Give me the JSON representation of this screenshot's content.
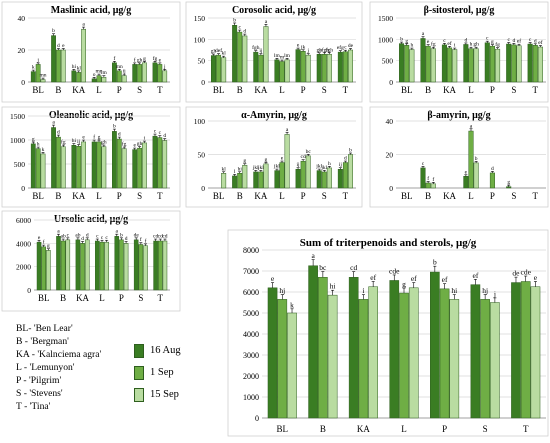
{
  "legend": {
    "abbreviations": [
      "BL- 'Ben Lear'",
      "B - 'Bergman'",
      "KA - 'Kalnciema agra'",
      "L - 'Lemunyon'",
      "P -  'Pilgrim'",
      "S - 'Stevens'",
      "T - 'Tina'"
    ],
    "series": [
      "16 Aug",
      "1 Sep",
      "15 Sep"
    ]
  },
  "colors": {
    "s0": "#3a7d23",
    "s1": "#6fae45",
    "s2": "#b9dca1",
    "edge": "#2e5e1e"
  },
  "chart_data": [
    {
      "type": "bar",
      "title": "Maslinic acid, μg/g",
      "categories": [
        "BL",
        "B",
        "KA",
        "L",
        "P",
        "S",
        "T"
      ],
      "ylim": [
        0,
        40
      ],
      "yticks": [
        0,
        20,
        40
      ],
      "yticklabels": [
        "0",
        "20",
        "40"
      ],
      "series": [
        {
          "name": "16 Aug",
          "values": [
            6.5,
            29,
            7,
            2,
            12,
            11,
            12
          ]
        },
        {
          "name": "1 Sep",
          "values": [
            11,
            20,
            6,
            4,
            7,
            11,
            11
          ]
        },
        {
          "name": "15 Sep",
          "values": [
            1.5,
            20,
            33,
            3,
            4,
            12,
            7
          ]
        }
      ],
      "labels": [
        [
          "k",
          "j",
          "mn"
        ],
        [
          "b",
          "d",
          "e"
        ],
        [
          "hi",
          "kl",
          "a"
        ],
        [
          "o",
          "mn",
          "lm"
        ],
        [
          "f",
          "mn",
          "ij"
        ],
        [
          "f",
          "gh",
          "g"
        ],
        [
          "fg",
          "e",
          "j"
        ]
      ]
    },
    {
      "type": "bar",
      "title": "Corosolic acid, μg/g",
      "categories": [
        "BL",
        "B",
        "KA",
        "L",
        "P",
        "S",
        "T"
      ],
      "ylim": [
        0,
        150
      ],
      "yticks": [
        0,
        50,
        100,
        150
      ],
      "yticklabels": [
        "0",
        "50",
        "100",
        "150"
      ],
      "series": [
        {
          "name": "16 Aug",
          "values": [
            62,
            133,
            70,
            52,
            76,
            65,
            70
          ]
        },
        {
          "name": "1 Sep",
          "values": [
            63,
            117,
            63,
            48,
            72,
            65,
            71
          ]
        },
        {
          "name": "15 Sep",
          "values": [
            57,
            108,
            130,
            52,
            63,
            65,
            75
          ]
        }
      ],
      "labels": [
        [
          "gh",
          "def",
          "kl"
        ],
        [
          "b",
          "c",
          "d"
        ],
        [
          "fgh",
          "ij",
          "a"
        ],
        [
          "lm",
          "m",
          "lm"
        ],
        [
          "e",
          "jk",
          "j"
        ],
        [
          "gh",
          "efgh",
          "fgh"
        ],
        [
          "efg",
          "c",
          "de"
        ]
      ]
    },
    {
      "type": "bar",
      "title": "β-sitosterol, μg/g",
      "categories": [
        "BL",
        "B",
        "KA",
        "L",
        "P",
        "S",
        "T"
      ],
      "ylim": [
        0,
        1500
      ],
      "yticks": [
        0,
        500,
        1000,
        1500
      ],
      "yticklabels": [
        "0",
        "500",
        "1000",
        "1500"
      ],
      "series": [
        {
          "name": "16 Aug",
          "values": [
            900,
            1020,
            870,
            880,
            920,
            890,
            890
          ]
        },
        {
          "name": "1 Sep",
          "values": [
            860,
            840,
            800,
            780,
            840,
            870,
            860
          ]
        },
        {
          "name": "15 Sep",
          "values": [
            760,
            780,
            760,
            780,
            770,
            850,
            820
          ]
        }
      ],
      "labels": [
        [
          "b",
          "g",
          "h"
        ],
        [
          "a",
          "e",
          "fg"
        ],
        [
          "c",
          "ef",
          "i"
        ],
        [
          "d",
          "h",
          "gh"
        ],
        [
          "c",
          "g",
          "fg"
        ],
        [
          "c",
          "d",
          "ef"
        ],
        [
          "c",
          "d",
          "ef"
        ]
      ]
    },
    {
      "type": "bar",
      "title": "Oleanolic acid, μg/g",
      "categories": [
        "BL",
        "B",
        "KA",
        "L",
        "P",
        "S",
        "T"
      ],
      "ylim": [
        0,
        1500
      ],
      "yticks": [
        0,
        500,
        1000,
        1500
      ],
      "yticklabels": [
        "0",
        "500",
        "1000",
        "1500"
      ],
      "series": [
        {
          "name": "16 Aug",
          "values": [
            920,
            1260,
            890,
            960,
            1180,
            800,
            1080
          ]
        },
        {
          "name": "1 Sep",
          "values": [
            820,
            1060,
            870,
            960,
            1020,
            830,
            1050
          ]
        },
        {
          "name": "15 Sep",
          "values": [
            710,
            860,
            960,
            860,
            820,
            940,
            990
          ]
        }
      ],
      "labels": [
        [
          "g",
          "h",
          "k"
        ],
        [
          "a",
          "d",
          "fg"
        ],
        [
          "hi",
          "ij",
          "e"
        ],
        [
          "f",
          "g",
          "gh"
        ],
        [
          "b",
          "d",
          "fg"
        ],
        [
          "e",
          "gh",
          "i"
        ],
        [
          "c",
          "c",
          "d"
        ]
      ]
    },
    {
      "type": "bar",
      "title": "α-Amyrin, μg/g",
      "categories": [
        "BL",
        "B",
        "KA",
        "L",
        "P",
        "S",
        "T"
      ],
      "ylim": [
        0,
        100
      ],
      "yticks": [
        0,
        50,
        100
      ],
      "yticklabels": [
        "0",
        "50",
        "100"
      ],
      "series": [
        {
          "name": "16 Aug",
          "values": [
            0,
            18,
            24,
            26,
            28,
            26,
            28
          ]
        },
        {
          "name": "1 Sep",
          "values": [
            0,
            22,
            24,
            38,
            40,
            24,
            38
          ]
        },
        {
          "name": "15 Sep",
          "values": [
            22,
            34,
            36,
            80,
            48,
            30,
            50
          ]
        }
      ],
      "labels": [
        [
          "",
          "",
          "kl"
        ],
        [
          "l",
          "hi",
          "g"
        ],
        [
          "jkl",
          "jkl",
          "g"
        ],
        [
          "jkl",
          "e",
          "a"
        ],
        [
          "ij",
          "cd",
          "bc"
        ],
        [
          "jkl",
          "jkl",
          "h"
        ],
        [
          "ij",
          "d",
          "b"
        ]
      ]
    },
    {
      "type": "bar",
      "title": "β-amyrin, μg/g",
      "categories": [
        "BL",
        "B",
        "KA",
        "L",
        "P",
        "S",
        "T"
      ],
      "ylim": [
        0,
        40
      ],
      "yticks": [
        0,
        20,
        40
      ],
      "yticklabels": [
        "0",
        "20",
        "40"
      ],
      "series": [
        {
          "name": "16 Aug",
          "values": [
            0,
            12,
            0,
            7,
            0,
            0.8,
            0
          ]
        },
        {
          "name": "1 Sep",
          "values": [
            0,
            3,
            0,
            34,
            9,
            0,
            0
          ]
        },
        {
          "name": "15 Sep",
          "values": [
            0,
            2.5,
            0,
            15,
            0,
            0,
            0
          ]
        }
      ],
      "labels": [
        [
          "",
          "",
          ""
        ],
        [
          "c",
          "f",
          "f"
        ],
        [
          "",
          "",
          ""
        ],
        [
          "e",
          "a",
          "b"
        ],
        [
          "",
          "d",
          ""
        ],
        [
          "g",
          "",
          ""
        ],
        [
          "",
          "",
          ""
        ]
      ]
    },
    {
      "type": "bar",
      "title": "Ursolic acid, μg/g",
      "categories": [
        "BL",
        "B",
        "KA",
        "L",
        "P",
        "S",
        "T"
      ],
      "ylim": [
        0,
        6000
      ],
      "yticks": [
        0,
        2000,
        4000,
        6000
      ],
      "yticklabels": [
        "0",
        "2000",
        "4000",
        "6000"
      ],
      "series": [
        {
          "name": "16 Aug",
          "values": [
            4100,
            4600,
            4300,
            4200,
            4600,
            4300,
            4200
          ]
        },
        {
          "name": "1 Sep",
          "values": [
            3700,
            4200,
            4000,
            4100,
            4300,
            3900,
            4200
          ]
        },
        {
          "name": "15 Sep",
          "values": [
            3400,
            4300,
            4300,
            4100,
            4000,
            3800,
            4200
          ]
        }
      ],
      "labels": [
        [
          "e",
          "f",
          "g"
        ],
        [
          "a",
          "ab",
          "c"
        ],
        [
          "ab",
          "d",
          "d"
        ],
        [
          "c",
          "c",
          "c"
        ],
        [
          "a",
          "b",
          "d"
        ],
        [
          "de",
          "f",
          "f"
        ],
        [
          "cd",
          "cd",
          "cd"
        ]
      ]
    },
    {
      "type": "bar",
      "title": "Sum of triterpenoids and sterols, μg/g",
      "categories": [
        "BL",
        "B",
        "KA",
        "L",
        "P",
        "S",
        "T"
      ],
      "ylim": [
        0,
        8000
      ],
      "yticks": [
        0,
        1000,
        2000,
        3000,
        4000,
        5000,
        6000,
        7000,
        8000
      ],
      "yticklabels": [
        "0",
        "1000",
        "2000",
        "3000",
        "4000",
        "5000",
        "6000",
        "7000",
        "8000"
      ],
      "series": [
        {
          "name": "16 Aug",
          "values": [
            6200,
            7250,
            6700,
            6550,
            6950,
            6350,
            6450
          ]
        },
        {
          "name": "1 Sep",
          "values": [
            5650,
            6700,
            5650,
            5950,
            6150,
            5650,
            6500
          ]
        },
        {
          "name": "15 Sep",
          "values": [
            5000,
            5850,
            6250,
            6200,
            5650,
            5500,
            6250
          ]
        }
      ],
      "labels": [
        [
          "e",
          "hj",
          "k"
        ],
        [
          "a",
          "bc",
          "hi"
        ],
        [
          "cd",
          "i",
          "ef"
        ],
        [
          "cde",
          "g",
          "ef"
        ],
        [
          "b",
          "ef",
          "hi"
        ],
        [
          "ef",
          "hj",
          "j"
        ],
        [
          "de",
          "cde",
          "e"
        ]
      ]
    }
  ]
}
